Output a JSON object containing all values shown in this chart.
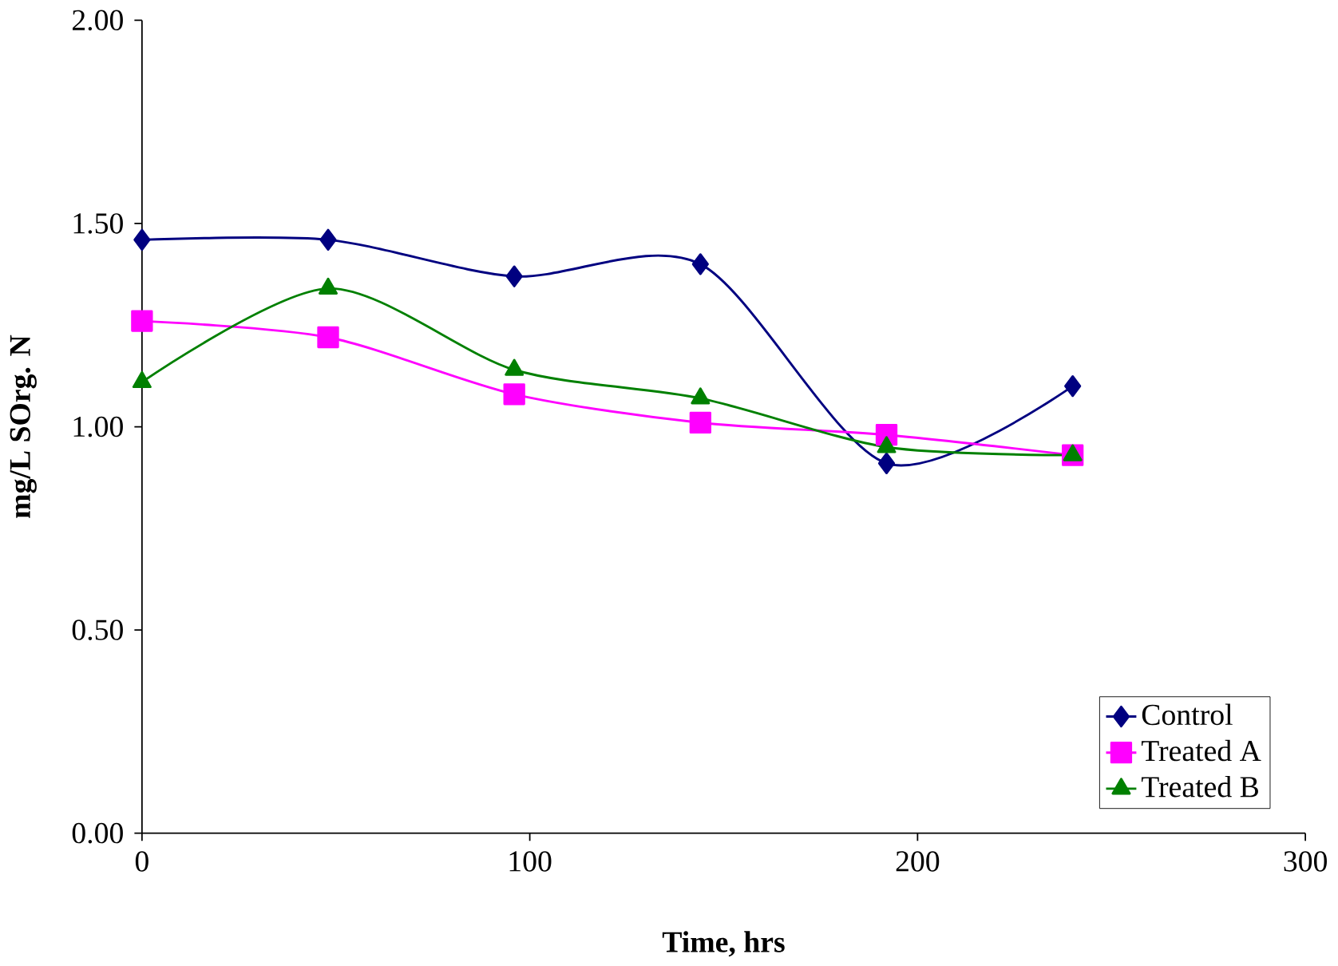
{
  "chart_data": {
    "type": "line",
    "xlabel": "Time, hrs",
    "ylabel": "mg/L SOrg. N",
    "x": [
      0,
      48,
      96,
      144,
      192,
      240
    ],
    "series": [
      {
        "name": "Control",
        "color": "#000080",
        "marker": "diamond",
        "values": [
          1.46,
          1.46,
          1.37,
          1.4,
          0.91,
          1.1
        ]
      },
      {
        "name": "Treated A",
        "color": "#ff00ff",
        "marker": "square",
        "values": [
          1.26,
          1.22,
          1.08,
          1.01,
          0.98,
          0.93
        ]
      },
      {
        "name": "Treated B",
        "color": "#008000",
        "marker": "triangle",
        "values": [
          1.11,
          1.34,
          1.14,
          1.07,
          0.95,
          0.93
        ]
      }
    ],
    "xlim": [
      0,
      300
    ],
    "xticks": [
      0,
      100,
      200,
      300
    ],
    "ylim": [
      0,
      2
    ],
    "yticks": [
      {
        "value": 0,
        "label": "0.00"
      },
      {
        "value": 0.5,
        "label": "0.50"
      },
      {
        "value": 1,
        "label": "1.00"
      },
      {
        "value": 1.5,
        "label": "1.50"
      },
      {
        "value": 2,
        "label": "2.00"
      }
    ],
    "legend": "bottom right",
    "grid": false,
    "line_style": "solid"
  }
}
